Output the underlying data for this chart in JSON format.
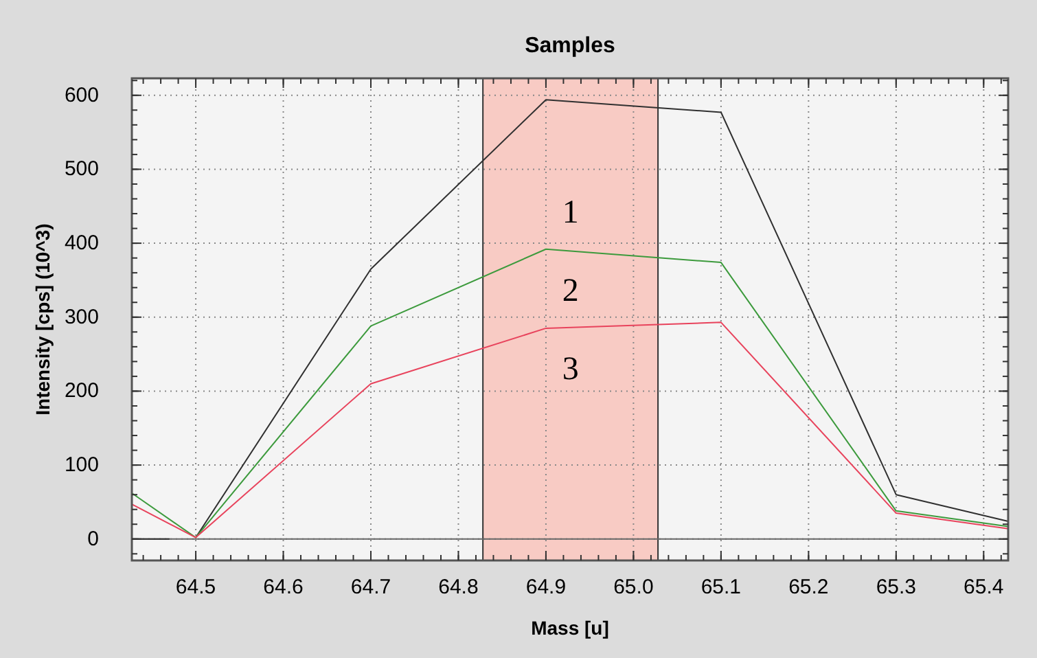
{
  "chart_data": {
    "type": "line",
    "title": "Samples",
    "xlabel": "Mass [u]",
    "ylabel": "Intensity [cps] (10^3)",
    "xlim": [
      64.427,
      65.428
    ],
    "xticks": [
      64.5,
      64.6,
      64.7,
      64.8,
      64.9,
      {
        "value": 65.0,
        "label": "65.0"
      },
      65.1,
      65.2,
      65.3,
      65.4
    ],
    "ylim": [
      -29,
      623
    ],
    "yticks": [
      0,
      100,
      200,
      300,
      400,
      500,
      600
    ],
    "grid": true,
    "marker": "none",
    "line_style": "solid",
    "series": [
      {
        "color": "#303030",
        "x": [
          64.427,
          64.47
        ],
        "values": [
          0,
          0
        ]
      },
      {
        "color": "#303030",
        "x": [
          64.5,
          64.7,
          64.9,
          65.1,
          65.3,
          65.428
        ],
        "values": [
          2,
          365,
          594,
          577,
          60,
          24
        ]
      },
      {
        "color": "#3c9a3c",
        "x": [
          64.427,
          64.5,
          64.7,
          64.9,
          65.1,
          65.3,
          65.428
        ],
        "values": [
          62,
          2,
          288,
          392,
          374,
          38,
          17
        ]
      },
      {
        "color": "#e8435c",
        "x": [
          64.427,
          64.5,
          64.7,
          64.9,
          65.1,
          65.3,
          65.428
        ],
        "values": [
          47,
          2,
          210,
          285,
          293,
          35,
          14
        ]
      }
    ],
    "bands": [
      {
        "axis": "x",
        "from": 64.828,
        "to": 65.028,
        "color": "#f8cbc4"
      }
    ],
    "annotations": [
      "1",
      "2",
      "3"
    ]
  }
}
